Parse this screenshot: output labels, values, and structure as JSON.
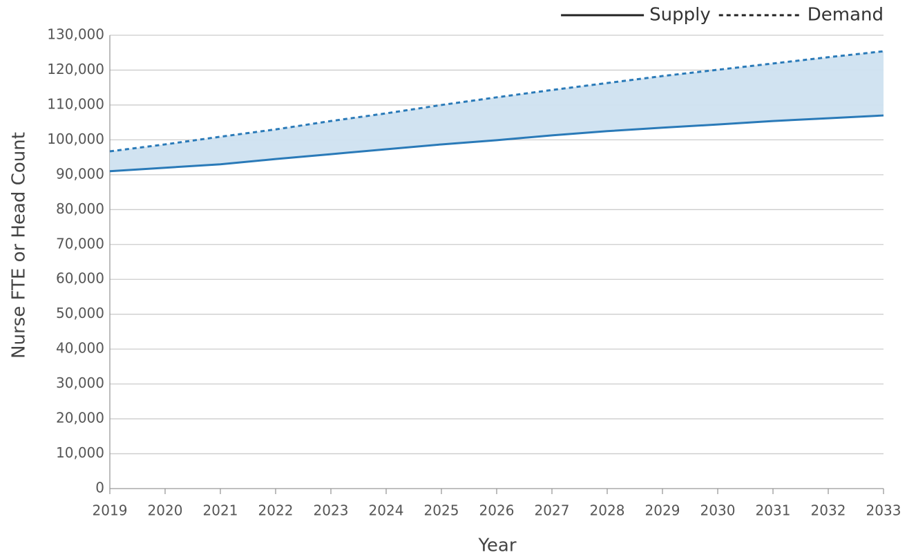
{
  "chart_data": {
    "type": "line",
    "x_label": "Year",
    "y_label": "Nurse FTE or Head Count",
    "x": [
      2019,
      2020,
      2021,
      2022,
      2023,
      2024,
      2025,
      2026,
      2027,
      2028,
      2029,
      2030,
      2031,
      2032,
      2033
    ],
    "xlim": [
      2019,
      2033
    ],
    "xticks": [
      2019,
      2020,
      2021,
      2022,
      2023,
      2024,
      2025,
      2026,
      2027,
      2028,
      2029,
      2030,
      2031,
      2032,
      2033
    ],
    "ylim": [
      0,
      130000
    ],
    "yticks": [
      0,
      {
        "value": 10000,
        "label": "10,000"
      },
      {
        "value": 20000,
        "label": "20,000"
      },
      {
        "value": 30000,
        "label": "30,000"
      },
      {
        "value": 40000,
        "label": "40,000"
      },
      {
        "value": 50000,
        "label": "50,000"
      },
      {
        "value": 60000,
        "label": "60,000"
      },
      {
        "value": 70000,
        "label": "70,000"
      },
      {
        "value": 80000,
        "label": "80,000"
      },
      {
        "value": 90000,
        "label": "90,000"
      },
      {
        "value": 100000,
        "label": "100,000"
      },
      {
        "value": 110000,
        "label": "110,000"
      },
      {
        "value": 120000,
        "label": "120,000"
      },
      {
        "value": 130000,
        "label": "130,000"
      }
    ],
    "grid": true,
    "legend": "top-right",
    "fill_between": "#cfe2f0",
    "series": [
      {
        "name": "Supply",
        "color": "#2a7ab8",
        "dash": false,
        "values": [
          91000,
          92000,
          93000,
          94500,
          95900,
          97300,
          98700,
          99900,
          101300,
          102500,
          103500,
          104400,
          105400,
          106200,
          107000
        ]
      },
      {
        "name": "Demand",
        "color": "#2a7ab8",
        "dash": true,
        "values": [
          96700,
          98700,
          100900,
          103000,
          105400,
          107600,
          110000,
          112200,
          114300,
          116300,
          118300,
          120100,
          121900,
          123700,
          125400
        ]
      }
    ]
  }
}
